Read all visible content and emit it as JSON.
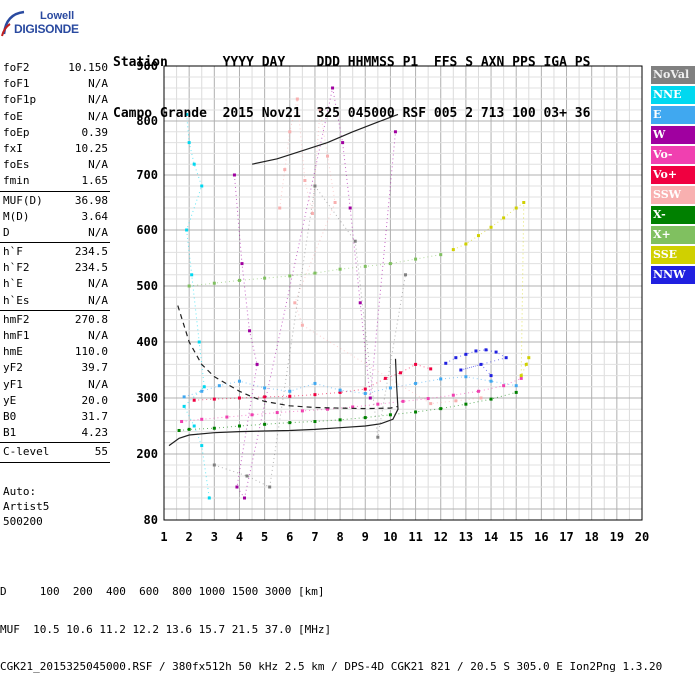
{
  "logo": {
    "line1": "Lowell",
    "line2": "DIGISONDE"
  },
  "header": {
    "row1": "Station       YYYY DAY    DDD HHMMSS P1  FFS S AXN PPS IGA PS",
    "row2": "Campo Grande  2015 Nov21  325 045000 RSF 005 2 713 100 03+ 36"
  },
  "params": {
    "group1": [
      {
        "label": "foF2",
        "value": "10.150"
      },
      {
        "label": "foF1",
        "value": "N/A"
      },
      {
        "label": "foF1p",
        "value": "N/A"
      },
      {
        "label": "foE",
        "value": "N/A"
      },
      {
        "label": "foEp",
        "value": "0.39"
      },
      {
        "label": "fxI",
        "value": "10.25"
      },
      {
        "label": "foEs",
        "value": "N/A"
      },
      {
        "label": "fmin",
        "value": "1.65"
      }
    ],
    "group2": [
      {
        "label": "MUF(D)",
        "value": "36.98"
      },
      {
        "label": "M(D)",
        "value": "3.64"
      },
      {
        "label": "D",
        "value": "N/A"
      }
    ],
    "group3": [
      {
        "label": "h`F",
        "value": "234.5"
      },
      {
        "label": "h`F2",
        "value": "234.5"
      },
      {
        "label": "h`E",
        "value": "N/A"
      },
      {
        "label": "h`Es",
        "value": "N/A"
      }
    ],
    "group4": [
      {
        "label": "hmF2",
        "value": "270.8"
      },
      {
        "label": "hmF1",
        "value": "N/A"
      },
      {
        "label": "hmE",
        "value": "110.0"
      },
      {
        "label": "yF2",
        "value": "39.7"
      },
      {
        "label": "yF1",
        "value": "N/A"
      },
      {
        "label": "yE",
        "value": "20.0"
      },
      {
        "label": "B0",
        "value": "31.7"
      },
      {
        "label": "B1",
        "value": "4.23"
      }
    ],
    "group5": [
      {
        "label": "C-level",
        "value": "55"
      }
    ],
    "auto": [
      "Auto:",
      "Artist5",
      "500200"
    ]
  },
  "legend": [
    {
      "label": "NoVal",
      "color": "#808080"
    },
    {
      "label": "NNE",
      "color": "#00d8f0"
    },
    {
      "label": "E",
      "color": "#40a8f0"
    },
    {
      "label": "W",
      "color": "#a000a0"
    },
    {
      "label": "Vo-",
      "color": "#f040b0"
    },
    {
      "label": "Vo+",
      "color": "#f00040"
    },
    {
      "label": "SSW",
      "color": "#f8b0b0"
    },
    {
      "label": "X-",
      "color": "#008000"
    },
    {
      "label": "X+",
      "color": "#80c060"
    },
    {
      "label": "SSE",
      "color": "#d0d000"
    },
    {
      "label": "NNW",
      "color": "#2020e0"
    }
  ],
  "footer": {
    "line1": "D     100  200  400  600  800 1000 1500 3000 [km]",
    "line2": "MUF  10.5 10.6 11.2 12.2 13.6 15.7 21.5 37.0 [MHz]",
    "line3": "CGK21_2015325045000.RSF / 380fx512h 50 kHz 2.5 km / DPS-4D CGK21 821 / 20.5 S 305.0 E Ion2Png 1.3.20"
  },
  "chart_data": {
    "type": "scatter",
    "xlim": [
      1,
      20
    ],
    "ylim": [
      80,
      900
    ],
    "x_ticks": [
      1,
      2,
      3,
      4,
      5,
      6,
      7,
      8,
      9,
      10,
      11,
      12,
      13,
      14,
      15,
      16,
      17,
      18,
      19,
      20
    ],
    "y_ticks": [
      80,
      200,
      300,
      400,
      500,
      600,
      700,
      800,
      900
    ],
    "grid": true,
    "legend_position": "right",
    "series": [
      {
        "name": "X-",
        "values": [
          [
            1.6,
            242
          ],
          [
            2,
            244
          ],
          [
            3,
            246
          ],
          [
            4,
            250
          ],
          [
            5,
            253
          ],
          [
            6,
            256
          ],
          [
            7,
            258
          ],
          [
            8,
            261
          ],
          [
            9,
            265
          ],
          [
            10,
            270
          ],
          [
            11,
            275
          ],
          [
            12,
            281
          ],
          [
            13,
            289
          ],
          [
            14,
            298
          ],
          [
            15,
            310
          ]
        ]
      },
      {
        "name": "Vo-",
        "values": [
          [
            1.7,
            258
          ],
          [
            2.5,
            262
          ],
          [
            3.5,
            266
          ],
          [
            4.5,
            270
          ],
          [
            5.5,
            274
          ],
          [
            6.5,
            277
          ],
          [
            7.5,
            280
          ],
          [
            8.5,
            284
          ],
          [
            9.5,
            289
          ],
          [
            10.5,
            294
          ],
          [
            11.5,
            299
          ],
          [
            12.5,
            305
          ],
          [
            13.5,
            312
          ],
          [
            14.5,
            322
          ],
          [
            15.2,
            335
          ]
        ]
      },
      {
        "name": "Vo+",
        "values": [
          [
            2.2,
            296
          ],
          [
            3,
            298
          ],
          [
            4,
            300
          ],
          [
            5,
            302
          ],
          [
            6,
            303
          ],
          [
            7,
            306
          ],
          [
            8,
            310
          ],
          [
            9,
            316
          ],
          [
            9.8,
            335
          ],
          [
            10.4,
            345
          ],
          [
            11,
            360
          ],
          [
            11.6,
            352
          ]
        ]
      },
      {
        "name": "E",
        "values": [
          [
            1.8,
            302
          ],
          [
            2.5,
            312
          ],
          [
            3.2,
            322
          ],
          [
            4,
            330
          ],
          [
            5,
            318
          ],
          [
            6,
            312
          ],
          [
            7,
            326
          ],
          [
            8,
            314
          ],
          [
            9,
            308
          ],
          [
            10,
            318
          ],
          [
            11,
            326
          ],
          [
            12,
            334
          ],
          [
            13,
            338
          ],
          [
            14,
            330
          ],
          [
            15,
            322
          ]
        ]
      },
      {
        "name": "NNE",
        "values": [
          [
            1.9,
            812
          ],
          [
            2,
            760
          ],
          [
            2.2,
            720
          ],
          [
            2.5,
            680
          ],
          [
            1.9,
            600
          ],
          [
            2.1,
            520
          ],
          [
            2.4,
            400
          ],
          [
            2.6,
            320
          ],
          [
            1.8,
            285
          ],
          [
            2.2,
            250
          ],
          [
            2.5,
            215
          ],
          [
            2.8,
            120
          ]
        ]
      },
      {
        "name": "NNW",
        "values": [
          [
            12.2,
            362
          ],
          [
            12.6,
            372
          ],
          [
            13,
            378
          ],
          [
            13.4,
            384
          ],
          [
            13.8,
            386
          ],
          [
            14.2,
            382
          ],
          [
            14.6,
            372
          ],
          [
            12.8,
            350
          ],
          [
            13.6,
            360
          ],
          [
            14,
            340
          ]
        ]
      },
      {
        "name": "SSW",
        "values": [
          [
            5.6,
            640
          ],
          [
            5.8,
            710
          ],
          [
            6,
            780
          ],
          [
            6.3,
            840
          ],
          [
            6.6,
            690
          ],
          [
            6.9,
            630
          ],
          [
            7.2,
            820
          ],
          [
            7.5,
            735
          ],
          [
            7.8,
            650
          ],
          [
            6.2,
            470
          ],
          [
            6.5,
            430
          ],
          [
            11.6,
            290
          ],
          [
            12.6,
            295
          ],
          [
            13.6,
            300
          ]
        ]
      },
      {
        "name": "W",
        "values": [
          [
            3.8,
            700
          ],
          [
            4.1,
            540
          ],
          [
            4.4,
            420
          ],
          [
            4.7,
            360
          ],
          [
            3.9,
            140
          ],
          [
            4.2,
            120
          ],
          [
            7.7,
            860
          ],
          [
            8.1,
            760
          ],
          [
            8.4,
            640
          ],
          [
            8.8,
            470
          ],
          [
            9.2,
            300
          ],
          [
            10.2,
            780
          ]
        ]
      },
      {
        "name": "X+",
        "values": [
          [
            2,
            500
          ],
          [
            3,
            505
          ],
          [
            4,
            510
          ],
          [
            5,
            514
          ],
          [
            6,
            518
          ],
          [
            7,
            523
          ],
          [
            8,
            530
          ],
          [
            9,
            535
          ],
          [
            10,
            540
          ],
          [
            11,
            548
          ],
          [
            12,
            556
          ]
        ]
      },
      {
        "name": "SSE",
        "values": [
          [
            12.5,
            565
          ],
          [
            13,
            575
          ],
          [
            13.5,
            590
          ],
          [
            14,
            605
          ],
          [
            14.5,
            622
          ],
          [
            15,
            640
          ],
          [
            15.3,
            650
          ],
          [
            15.2,
            340
          ],
          [
            15.4,
            360
          ],
          [
            15.5,
            372
          ]
        ]
      },
      {
        "name": "NoVal",
        "values": [
          [
            3,
            180
          ],
          [
            4.3,
            160
          ],
          [
            5.2,
            140
          ],
          [
            7,
            680
          ],
          [
            8.6,
            580
          ],
          [
            9.5,
            230
          ],
          [
            10.6,
            520
          ]
        ]
      }
    ],
    "curves": [
      {
        "style": "dashed",
        "values": [
          [
            1.55,
            465
          ],
          [
            2,
            400
          ],
          [
            2.5,
            360
          ],
          [
            3,
            338
          ],
          [
            3.5,
            325
          ],
          [
            4,
            312
          ],
          [
            4.5,
            302
          ],
          [
            5,
            294
          ],
          [
            6,
            286
          ],
          [
            7,
            283
          ],
          [
            8,
            282
          ],
          [
            9,
            281
          ],
          [
            10,
            282
          ],
          [
            10.3,
            285
          ]
        ]
      },
      {
        "style": "solid",
        "values": [
          [
            1.2,
            215
          ],
          [
            1.6,
            228
          ],
          [
            2,
            234
          ],
          [
            3,
            238
          ],
          [
            4,
            240
          ],
          [
            5,
            241
          ],
          [
            6,
            242
          ],
          [
            7,
            244
          ],
          [
            8,
            247
          ],
          [
            9,
            250
          ],
          [
            9.6,
            254
          ],
          [
            10.1,
            262
          ],
          [
            10.3,
            280
          ],
          [
            10.25,
            320
          ],
          [
            10.2,
            370
          ]
        ]
      },
      {
        "style": "solid",
        "values": [
          [
            4.5,
            720
          ],
          [
            5.5,
            730
          ],
          [
            6.5,
            745
          ],
          [
            7.5,
            760
          ],
          [
            8.5,
            780
          ],
          [
            9.5,
            798
          ],
          [
            10.3,
            812
          ]
        ]
      }
    ]
  }
}
